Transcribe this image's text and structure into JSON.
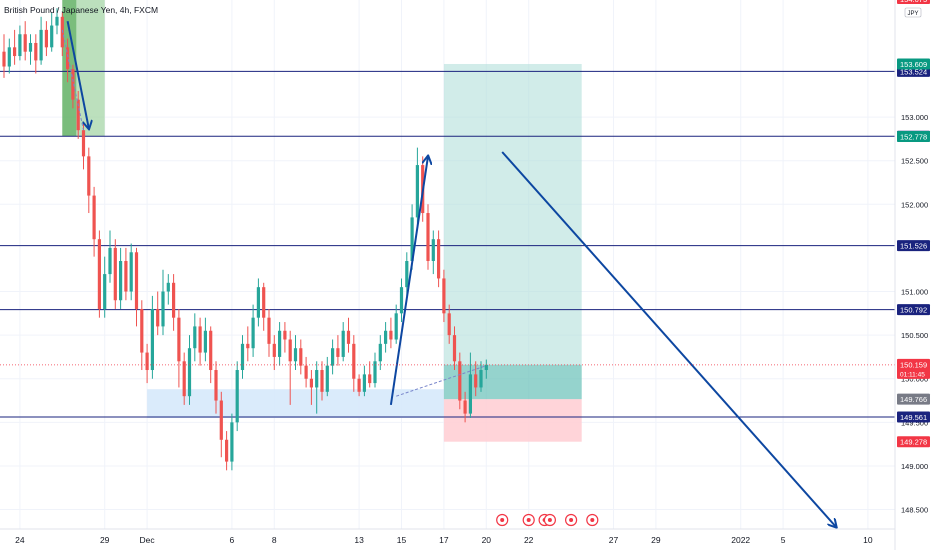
{
  "chart_data": {
    "type": "candlestick",
    "title": "British Pound / Japanese Yen, 4h, FXCM",
    "currency_badge": "JPY",
    "ylim": [
      148.3,
      154.4
    ],
    "colors": {
      "up": "#26a69a",
      "down": "#ef5350",
      "level_line": "#1a237e",
      "drawing": "#0d47a1",
      "target_zone": "#b2dfdb",
      "stop_zone": "#ffcdd2",
      "demand_zone": "#d6e9fb",
      "green_box": "#a5d6a7"
    },
    "y_ticks": [
      {
        "value": 153.0,
        "label": "153.000"
      },
      {
        "value": 152.5,
        "label": "152.500"
      },
      {
        "value": 152.0,
        "label": "152.000"
      },
      {
        "value": 151.0,
        "label": "151.000"
      },
      {
        "value": 150.5,
        "label": "150.500"
      },
      {
        "value": 150.0,
        "label": "150.000"
      },
      {
        "value": 149.5,
        "label": "149.500"
      },
      {
        "value": 149.0,
        "label": "149.000"
      },
      {
        "value": 148.5,
        "label": "148.500"
      }
    ],
    "x_ticks": [
      {
        "index": 3,
        "label": "24"
      },
      {
        "index": 19,
        "label": "29"
      },
      {
        "index": 27,
        "label": "Dec"
      },
      {
        "index": 43,
        "label": "6"
      },
      {
        "index": 51,
        "label": "8"
      },
      {
        "index": 67,
        "label": "13"
      },
      {
        "index": 75,
        "label": "15"
      },
      {
        "index": 83,
        "label": "17"
      },
      {
        "index": 91,
        "label": "20"
      },
      {
        "index": 99,
        "label": "22"
      },
      {
        "index": 115,
        "label": "27"
      },
      {
        "index": 123,
        "label": "29"
      },
      {
        "index": 139,
        "label": "2022"
      },
      {
        "index": 147,
        "label": "5"
      },
      {
        "index": 163,
        "label": "10"
      }
    ],
    "horizontal_levels": [
      {
        "value": 153.524,
        "label": "153.524",
        "color": "#1a237e"
      },
      {
        "value": 152.78,
        "label": "152.780",
        "color": "#1a237e"
      },
      {
        "value": 151.526,
        "label": "151.526",
        "color": "#1a237e"
      },
      {
        "value": 150.792,
        "label": "150.792",
        "color": "#1a237e"
      },
      {
        "value": 149.561,
        "label": "149.561",
        "color": "#1a237e"
      }
    ],
    "price_tags": [
      {
        "value": 153.609,
        "label": "153.609",
        "color": "#089981"
      },
      {
        "value": 152.778,
        "label": "152.778",
        "color": "#089981"
      },
      {
        "value": 149.766,
        "label": "149.766",
        "color": "#787b86"
      },
      {
        "value": 149.278,
        "label": "149.278",
        "color": "#f23645"
      }
    ],
    "last_price": {
      "value": 150.159,
      "label": "150.159",
      "countdown": "01:11:45",
      "color": "#f23645"
    },
    "top_cut_label": "154.075",
    "candles": [
      [
        153.75,
        153.58,
        153.95,
        153.45
      ],
      [
        153.58,
        153.8,
        153.9,
        153.5
      ],
      [
        153.8,
        153.7,
        154.0,
        153.6
      ],
      [
        153.7,
        153.95,
        154.05,
        153.65
      ],
      [
        153.95,
        153.75,
        154.1,
        153.65
      ],
      [
        153.75,
        153.85,
        153.95,
        153.6
      ],
      [
        153.85,
        153.65,
        153.95,
        153.5
      ],
      [
        153.65,
        154.0,
        154.15,
        153.6
      ],
      [
        154.0,
        153.8,
        154.1,
        153.7
      ],
      [
        153.8,
        154.05,
        154.2,
        153.75
      ],
      [
        154.05,
        154.15,
        154.25,
        153.95
      ],
      [
        154.15,
        153.8,
        154.2,
        153.7
      ],
      [
        153.8,
        153.55,
        153.9,
        153.4
      ],
      [
        153.55,
        153.2,
        153.6,
        153.1
      ],
      [
        153.2,
        152.85,
        153.3,
        152.75
      ],
      [
        152.85,
        152.55,
        152.95,
        152.4
      ],
      [
        152.55,
        152.1,
        152.65,
        151.9
      ],
      [
        152.1,
        151.6,
        152.2,
        151.4
      ],
      [
        151.6,
        150.8,
        151.7,
        150.7
      ],
      [
        150.8,
        151.2,
        151.4,
        150.7
      ],
      [
        151.2,
        151.5,
        151.7,
        151.1
      ],
      [
        151.5,
        150.9,
        151.6,
        150.8
      ],
      [
        150.9,
        151.35,
        151.5,
        150.8
      ],
      [
        151.35,
        151.0,
        151.5,
        150.9
      ],
      [
        151.0,
        151.45,
        151.55,
        150.9
      ],
      [
        151.45,
        150.8,
        151.5,
        150.6
      ],
      [
        150.8,
        150.3,
        150.9,
        150.1
      ],
      [
        150.3,
        150.1,
        150.4,
        149.95
      ],
      [
        150.1,
        150.8,
        150.95,
        150.0
      ],
      [
        150.8,
        150.6,
        151.0,
        150.5
      ],
      [
        150.6,
        151.0,
        151.25,
        150.5
      ],
      [
        151.0,
        151.1,
        151.2,
        150.85
      ],
      [
        151.1,
        150.7,
        151.2,
        150.55
      ],
      [
        150.7,
        150.2,
        150.8,
        149.9
      ],
      [
        150.2,
        149.8,
        150.3,
        149.7
      ],
      [
        149.8,
        150.35,
        150.5,
        149.7
      ],
      [
        150.35,
        150.6,
        150.75,
        150.2
      ],
      [
        150.6,
        150.3,
        150.7,
        150.15
      ],
      [
        150.3,
        150.55,
        150.7,
        150.2
      ],
      [
        150.55,
        150.1,
        150.6,
        149.95
      ],
      [
        150.1,
        149.75,
        150.2,
        149.6
      ],
      [
        149.75,
        149.3,
        149.85,
        149.1
      ],
      [
        149.3,
        149.05,
        149.4,
        148.95
      ],
      [
        149.05,
        149.5,
        149.6,
        148.95
      ],
      [
        149.5,
        150.1,
        150.2,
        149.4
      ],
      [
        150.1,
        150.4,
        150.5,
        150.0
      ],
      [
        150.4,
        150.35,
        150.6,
        150.2
      ],
      [
        150.35,
        150.7,
        150.85,
        150.25
      ],
      [
        150.7,
        151.05,
        151.15,
        150.6
      ],
      [
        151.05,
        150.7,
        151.1,
        150.55
      ],
      [
        150.7,
        150.4,
        150.8,
        150.25
      ],
      [
        150.4,
        150.25,
        150.5,
        150.1
      ],
      [
        150.25,
        150.55,
        150.65,
        150.15
      ],
      [
        150.55,
        150.45,
        150.65,
        150.3
      ],
      [
        150.45,
        150.2,
        150.55,
        149.7
      ],
      [
        150.2,
        150.35,
        150.5,
        150.1
      ],
      [
        150.35,
        150.15,
        150.45,
        150.05
      ],
      [
        150.15,
        150.0,
        150.25,
        149.9
      ],
      [
        150.0,
        149.9,
        150.1,
        149.7
      ],
      [
        149.9,
        150.1,
        150.2,
        149.6
      ],
      [
        150.1,
        149.85,
        150.2,
        149.75
      ],
      [
        149.85,
        150.15,
        150.25,
        149.8
      ],
      [
        150.15,
        150.35,
        150.45,
        150.05
      ],
      [
        150.35,
        150.25,
        150.5,
        150.15
      ],
      [
        150.25,
        150.55,
        150.65,
        150.2
      ],
      [
        150.55,
        150.4,
        150.7,
        150.3
      ],
      [
        150.4,
        150.0,
        150.5,
        149.85
      ],
      [
        150.0,
        149.85,
        150.05,
        149.8
      ],
      [
        149.85,
        150.05,
        150.15,
        149.8
      ],
      [
        150.05,
        149.95,
        150.2,
        149.9
      ],
      [
        149.95,
        150.2,
        150.3,
        149.9
      ],
      [
        150.2,
        150.4,
        150.5,
        150.1
      ],
      [
        150.4,
        150.55,
        150.65,
        150.3
      ],
      [
        150.55,
        150.45,
        150.7,
        150.35
      ],
      [
        150.45,
        150.75,
        150.85,
        150.4
      ],
      [
        150.75,
        151.05,
        151.15,
        150.65
      ],
      [
        151.05,
        151.35,
        151.45,
        150.95
      ],
      [
        151.35,
        151.85,
        152.0,
        151.25
      ],
      [
        151.85,
        152.45,
        152.65,
        151.75
      ],
      [
        152.45,
        151.9,
        152.55,
        151.8
      ],
      [
        151.9,
        151.35,
        152.0,
        151.25
      ],
      [
        151.35,
        151.6,
        151.7,
        151.2
      ],
      [
        151.6,
        151.15,
        151.7,
        151.05
      ],
      [
        151.15,
        150.75,
        151.25,
        150.65
      ],
      [
        150.75,
        150.5,
        150.85,
        150.4
      ],
      [
        150.5,
        150.2,
        150.6,
        150.1
      ],
      [
        150.2,
        149.75,
        150.3,
        149.65
      ],
      [
        149.75,
        149.6,
        149.85,
        149.5
      ],
      [
        149.6,
        150.05,
        150.3,
        149.55
      ],
      [
        150.05,
        149.9,
        150.2,
        149.8
      ],
      [
        149.9,
        150.1,
        150.2,
        149.85
      ],
      [
        150.1,
        150.16,
        150.22,
        150.0
      ]
    ],
    "range_tool": {
      "start_index": 83,
      "end_index": 109,
      "entry": 149.766,
      "target": 153.609,
      "stop": 149.278
    },
    "demand_zone": {
      "start_index": 27,
      "end_index": 83,
      "top": 149.88,
      "bottom": 149.55
    },
    "green_box": {
      "start_index": 11,
      "end_index": 19,
      "top": 154.4,
      "bottom": 152.78
    },
    "arrows": [
      {
        "from": [
          12,
          154.1
        ],
        "to": [
          16,
          152.87
        ]
      },
      {
        "from": [
          73,
          149.7
        ],
        "to": [
          80,
          152.55
        ]
      },
      {
        "from": [
          94,
          152.6
        ],
        "to": [
          157,
          148.3
        ]
      }
    ],
    "dashed_lines": [
      {
        "from": [
          11,
          154.0
        ],
        "to": [
          15,
          152.85
        ]
      },
      {
        "from": [
          74,
          149.8
        ],
        "to": [
          91,
          150.15
        ]
      }
    ],
    "event_markers": [
      {
        "index": 94
      },
      {
        "index": 99
      },
      {
        "index": 102
      },
      {
        "index": 103
      },
      {
        "index": 107
      },
      {
        "index": 111
      }
    ]
  }
}
